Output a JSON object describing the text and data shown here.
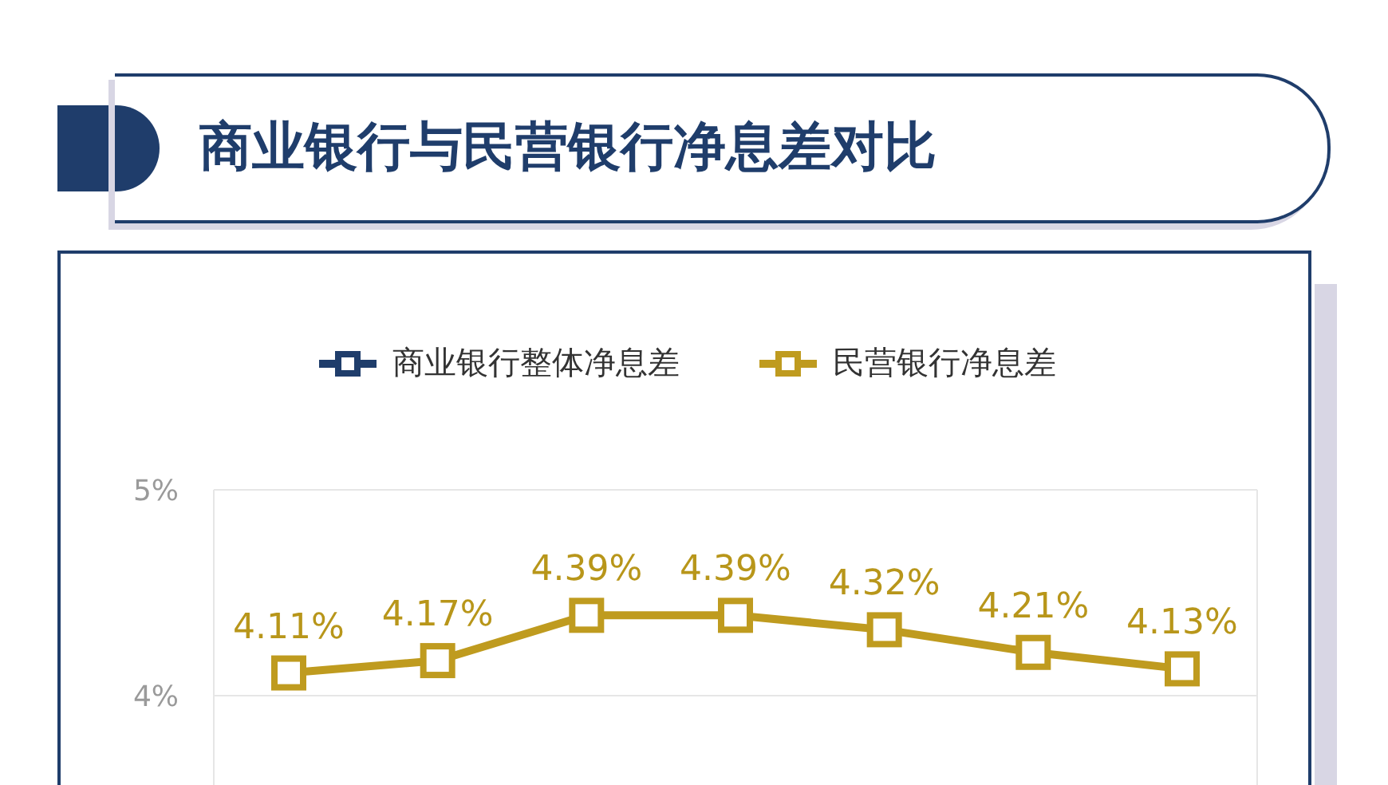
{
  "chart_data": {
    "type": "line",
    "title": "商业银行与民营银行净息差对比",
    "categories": [
      null,
      null,
      null,
      null,
      null,
      null,
      null
    ],
    "series": [
      {
        "name": "商业银行整体净息差",
        "color": "#1f3d6b",
        "values": [
          null,
          null,
          null,
          null,
          null,
          null,
          null
        ]
      },
      {
        "name": "民营银行净息差",
        "color": "#bf9b1f",
        "values": [
          4.11,
          4.17,
          4.39,
          4.39,
          4.32,
          4.21,
          4.13
        ],
        "value_labels": [
          "4.11%",
          "4.17%",
          "4.39%",
          "4.39%",
          "4.32%",
          "4.21%",
          "4.13%"
        ]
      }
    ],
    "ylim": [
      3.55,
      5
    ],
    "yticks": [
      {
        "value": 4,
        "label": "4%"
      },
      {
        "value": 5,
        "label": "5%"
      }
    ],
    "grid": true,
    "legend": "top",
    "marker": "square",
    "line_style": "solid"
  }
}
